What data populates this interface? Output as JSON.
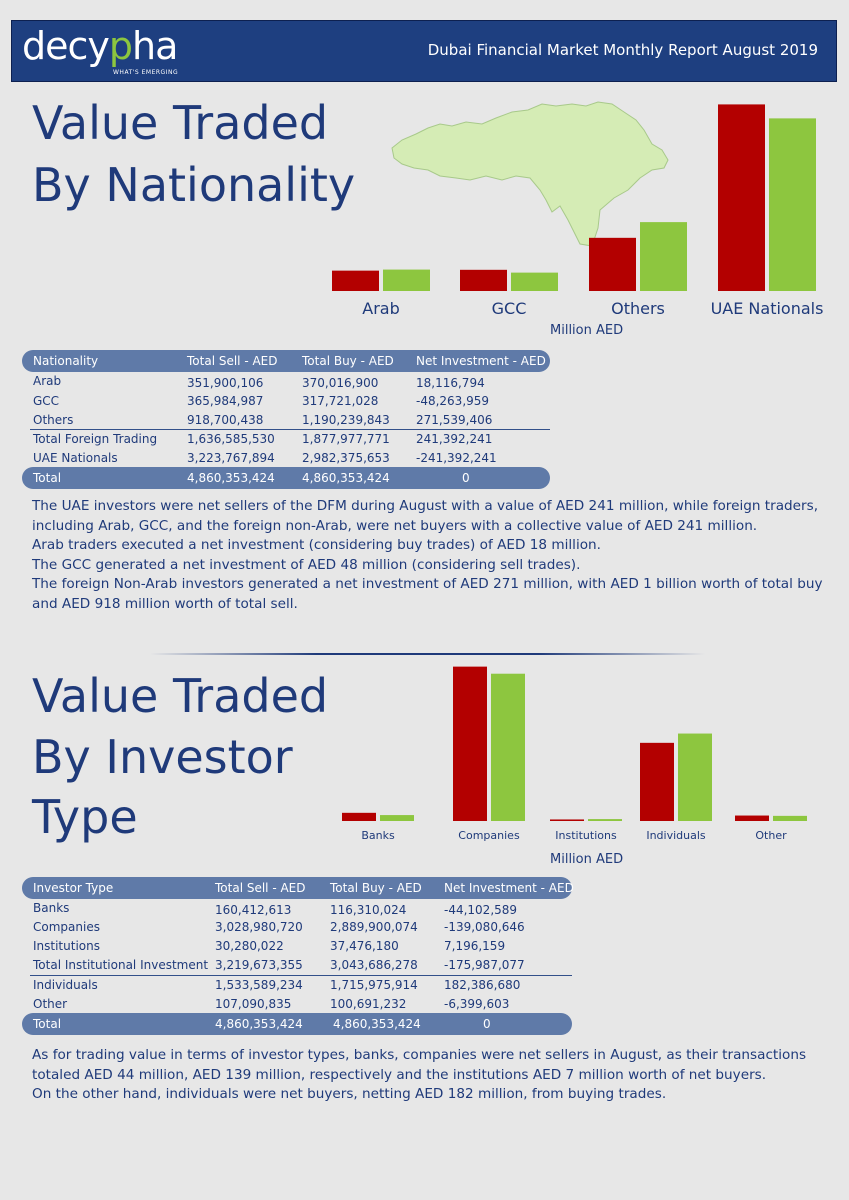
{
  "header": {
    "logo_main": "decy",
    "logo_accent": "p",
    "logo_end": "ha",
    "logo_tagline": "WHAT'S EMERGING",
    "report_title": "Dubai Financial Market Monthly Report August 2019"
  },
  "section1": {
    "title_line1": "Value Traded",
    "title_line2": "By Nationality",
    "unit_label": "Million AED",
    "colors": {
      "sell": "#b30000",
      "buy": "#8dc63f",
      "map": "#d5ecb5"
    },
    "table": {
      "headers": [
        "Nationality",
        "Total Sell - AED",
        "Total Buy - AED",
        "Net Investment - AED"
      ],
      "rows": [
        [
          "Arab",
          "351,900,106",
          "370,016,900",
          "18,116,794"
        ],
        [
          "GCC",
          "365,984,987",
          "317,721,028",
          "-48,263,959"
        ],
        [
          "Others",
          "918,700,438",
          "1,190,239,843",
          "271,539,406"
        ],
        [
          "Total Foreign Trading",
          "1,636,585,530",
          "1,877,977,771",
          "241,392,241"
        ],
        [
          "UAE Nationals",
          "3,223,767,894",
          "2,982,375,653",
          "-241,392,241"
        ]
      ],
      "total": [
        "Total",
        "4,860,353,424",
        "4,860,353,424",
        "0"
      ]
    },
    "paragraphs": [
      "The UAE investors were net sellers of the DFM during August with a value of AED 241 million, while foreign traders, including Arab, GCC, and the foreign non-Arab, were net buyers with a collective value of AED 241 million.",
      "Arab traders executed a net investment (considering buy trades) of AED 18 million.",
      "The GCC generated a net investment of AED 48 million (considering sell trades).",
      "The foreign Non-Arab investors generated a net investment of AED 271 million, with AED 1 billion worth of total buy and AED 918 million worth of total sell."
    ]
  },
  "section2": {
    "title_line1": "Value Traded",
    "title_line2": "By Investor",
    "title_line3": "Type",
    "unit_label": "Million AED",
    "table": {
      "headers": [
        "Investor Type",
        "Total Sell - AED",
        "Total Buy - AED",
        "Net Investment - AED"
      ],
      "rows": [
        [
          "Banks",
          "160,412,613",
          "116,310,024",
          "-44,102,589"
        ],
        [
          "Companies",
          "3,028,980,720",
          "2,889,900,074",
          "-139,080,646"
        ],
        [
          "Institutions",
          "30,280,022",
          "37,476,180",
          "7,196,159"
        ],
        [
          "Total Institutional Investment",
          "3,219,673,355",
          "3,043,686,278",
          "-175,987,077"
        ],
        [
          "Individuals",
          "1,533,589,234",
          "1,715,975,914",
          "182,386,680"
        ],
        [
          "Other",
          "107,090,835",
          "100,691,232",
          "-6,399,603"
        ]
      ],
      "total": [
        "Total",
        "4,860,353,424",
        "4,860,353,424",
        "0"
      ]
    },
    "paragraphs": [
      "As for trading value in terms of investor types, banks, companies were net sellers in August, as their transactions totaled AED 44 million, AED 139 million, respectively and the institutions AED 7 million worth of net buyers.",
      "On the other hand, individuals were net buyers, netting AED 182 million, from buying trades."
    ]
  },
  "chart_data": [
    {
      "type": "bar",
      "categories": [
        "Arab",
        "GCC",
        "Others",
        "UAE Nationals"
      ],
      "series": [
        {
          "name": "Total Sell",
          "values": [
            351.9,
            366.0,
            918.7,
            3223.8
          ]
        },
        {
          "name": "Total Buy",
          "values": [
            370.0,
            317.7,
            1190.2,
            2982.4
          ]
        }
      ],
      "ylabel": "",
      "xlabel": "Million AED",
      "ylim": [
        0,
        3300
      ]
    },
    {
      "type": "bar",
      "categories": [
        "Banks",
        "Companies",
        "Institutions",
        "Individuals",
        "Other"
      ],
      "series": [
        {
          "name": "Total Sell",
          "values": [
            160.4,
            3029.0,
            30.3,
            1533.6,
            107.1
          ]
        },
        {
          "name": "Total Buy",
          "values": [
            116.3,
            2889.9,
            37.5,
            1716.0,
            100.7
          ]
        }
      ],
      "ylabel": "",
      "xlabel": "Million AED",
      "ylim": [
        0,
        3100
      ]
    }
  ]
}
